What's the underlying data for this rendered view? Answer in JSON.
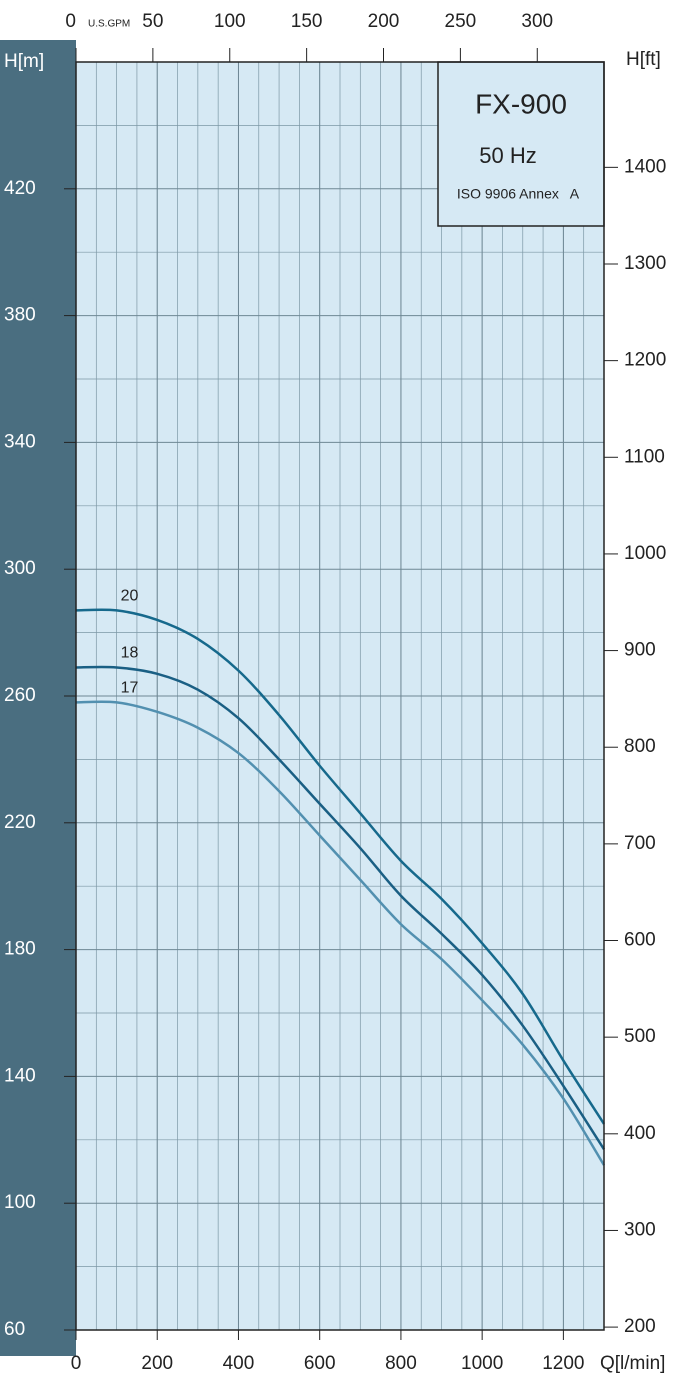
{
  "chart_data": {
    "type": "line",
    "title": "FX-900",
    "subtitle": "50 Hz",
    "annotation": "ISO 9906 Annex   A",
    "xlabel": "Q[l/min]",
    "ylabel": "H[m]",
    "y2label": "H[ft]",
    "x2label": "U.S.GPM",
    "x": [
      0,
      100,
      200,
      300,
      400,
      500,
      600,
      700,
      800,
      900,
      1000,
      1100,
      1200,
      1300
    ],
    "series": [
      {
        "name": "20",
        "color": "#16698c",
        "values": [
          287,
          287,
          284,
          278,
          268,
          254,
          238,
          223,
          208,
          196,
          182,
          166,
          145,
          125
        ]
      },
      {
        "name": "18",
        "color": "#1a5f84",
        "values": [
          269,
          269,
          267,
          262,
          253,
          240,
          226,
          212,
          197,
          185,
          172,
          156,
          137,
          117
        ]
      },
      {
        "name": "17",
        "color": "#5290b0",
        "values": [
          258,
          258,
          255,
          250,
          242,
          230,
          216,
          202,
          188,
          177,
          164,
          150,
          133,
          112
        ]
      }
    ],
    "xlim": [
      0,
      1300
    ],
    "xticks": [
      0,
      200,
      400,
      600,
      800,
      1000,
      1200
    ],
    "x2lim": [
      0,
      343.4
    ],
    "x2ticks": [
      0,
      50,
      100,
      150,
      200,
      250,
      300
    ],
    "ylim": [
      60,
      460
    ],
    "yticks": [
      60,
      100,
      140,
      180,
      220,
      260,
      300,
      340,
      380,
      420
    ],
    "y2lim": [
      197,
      1509
    ],
    "y2ticks": [
      200,
      300,
      400,
      500,
      600,
      700,
      800,
      900,
      1000,
      1100,
      1200,
      1300,
      1400
    ],
    "grid": true
  }
}
